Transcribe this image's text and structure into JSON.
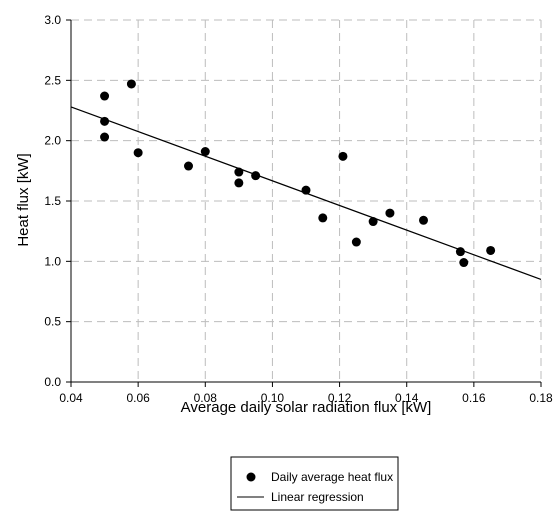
{
  "chart_data": {
    "type": "scatter",
    "title": "",
    "xlabel": "Average daily solar radiation flux [kW]",
    "ylabel": "Heat flux [kW]",
    "xlim": [
      0.04,
      0.18
    ],
    "ylim": [
      0.0,
      3.0
    ],
    "x_ticks": [
      0.04,
      0.06,
      0.08,
      0.1,
      0.12,
      0.14,
      0.16,
      0.18
    ],
    "x_tick_labels": [
      "0.04",
      "0.06",
      "0.08",
      "0.10",
      "0.12",
      "0.14",
      "0.16",
      "0.18"
    ],
    "y_ticks": [
      0.0,
      0.5,
      1.0,
      1.5,
      2.0,
      2.5,
      3.0
    ],
    "y_tick_labels": [
      "0.0",
      "0.5",
      "1.0",
      "1.5",
      "2.0",
      "2.5",
      "3.0"
    ],
    "grid": true,
    "legend_position": "bottom",
    "series": [
      {
        "name": "Daily average heat flux",
        "kind": "scatter",
        "color": "#000000",
        "points": [
          {
            "x": 0.05,
            "y": 2.37
          },
          {
            "x": 0.05,
            "y": 2.16
          },
          {
            "x": 0.05,
            "y": 2.03
          },
          {
            "x": 0.058,
            "y": 2.47
          },
          {
            "x": 0.06,
            "y": 1.9
          },
          {
            "x": 0.075,
            "y": 1.79
          },
          {
            "x": 0.08,
            "y": 1.91
          },
          {
            "x": 0.09,
            "y": 1.74
          },
          {
            "x": 0.09,
            "y": 1.65
          },
          {
            "x": 0.095,
            "y": 1.71
          },
          {
            "x": 0.11,
            "y": 1.59
          },
          {
            "x": 0.115,
            "y": 1.36
          },
          {
            "x": 0.121,
            "y": 1.87
          },
          {
            "x": 0.125,
            "y": 1.16
          },
          {
            "x": 0.13,
            "y": 1.33
          },
          {
            "x": 0.135,
            "y": 1.4
          },
          {
            "x": 0.145,
            "y": 1.34
          },
          {
            "x": 0.156,
            "y": 1.08
          },
          {
            "x": 0.157,
            "y": 0.99
          },
          {
            "x": 0.165,
            "y": 1.09
          }
        ]
      },
      {
        "name": "Linear regression",
        "kind": "line",
        "color": "#000000",
        "points": [
          {
            "x": 0.04,
            "y": 2.28
          },
          {
            "x": 0.18,
            "y": 0.85
          }
        ]
      }
    ]
  }
}
